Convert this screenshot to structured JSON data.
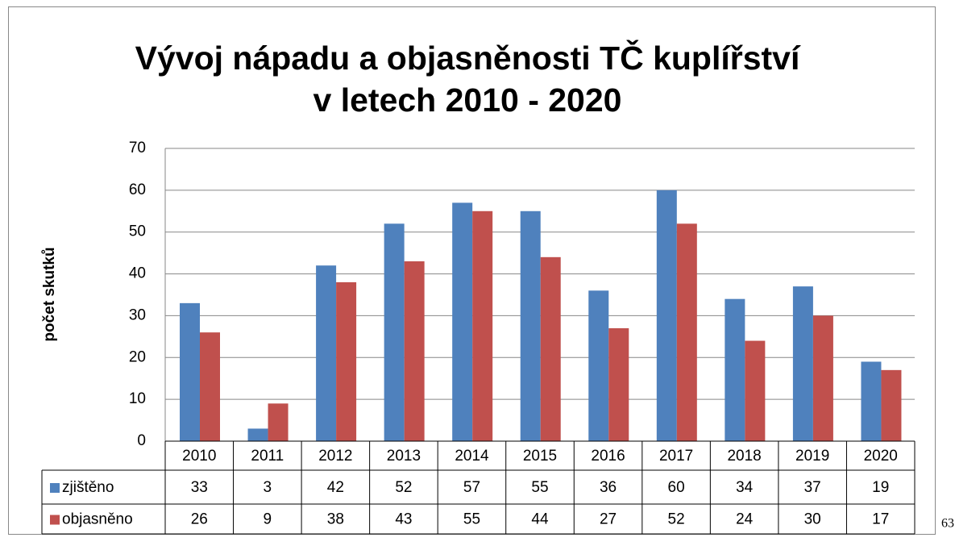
{
  "chart_data": {
    "type": "bar",
    "title": "Vývoj nápadu a objasněnosti TČ kuplířství",
    "subtitle": "v letech 2010 - 2020",
    "y_label": "počet skutků",
    "categories": [
      "2010",
      "2011",
      "2012",
      "2013",
      "2014",
      "2015",
      "2016",
      "2017",
      "2018",
      "2019",
      "2020"
    ],
    "series": [
      {
        "name": "zjištěno",
        "color": "#4f81bd",
        "values": [
          33,
          3,
          42,
          52,
          57,
          55,
          36,
          60,
          34,
          37,
          19
        ]
      },
      {
        "name": "objasněno",
        "color": "#c0504d",
        "values": [
          26,
          9,
          38,
          43,
          55,
          44,
          27,
          52,
          24,
          30,
          17
        ]
      }
    ],
    "ylim": [
      0,
      70
    ],
    "yticks": [
      0,
      10,
      20,
      30,
      40,
      50,
      60,
      70
    ],
    "grid": true,
    "data_table": true
  },
  "page_number": 63
}
